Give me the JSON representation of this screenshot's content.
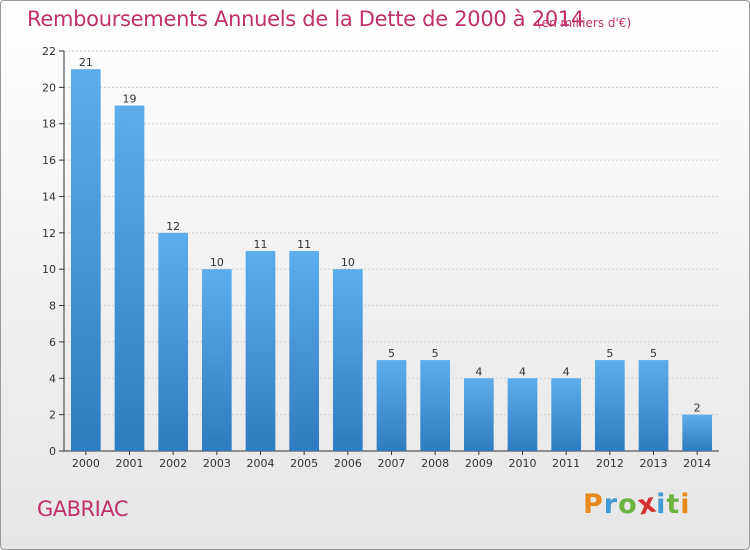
{
  "title": "Remboursements Annuels de la Dette de 2000 à 2014",
  "unit_note": "(en milliers d'€)",
  "commune": "GABRIAC",
  "logo": {
    "letters": [
      "P",
      "r",
      "o",
      "x",
      "i",
      "t",
      "i"
    ],
    "colors": [
      "#e8891c",
      "#3f9ad6",
      "#6cb33f",
      "#d6312f",
      "#3f9ad6",
      "#6cb33f",
      "#e8891c"
    ]
  },
  "colors": {
    "bar_top": "#5dadec",
    "bar_bottom": "#2f7bbf",
    "title": "#c0306a",
    "grid": "#cfcfcf"
  },
  "chart_data": {
    "type": "bar",
    "title": "Remboursements Annuels de la Dette de 2000 à 2014",
    "categories": [
      "2000",
      "2001",
      "2002",
      "2003",
      "2004",
      "2005",
      "2006",
      "2007",
      "2008",
      "2009",
      "2010",
      "2011",
      "2012",
      "2013",
      "2014"
    ],
    "values": [
      21,
      19,
      12,
      10,
      11,
      11,
      10,
      5,
      5,
      4,
      4,
      4,
      5,
      5,
      2
    ],
    "ylim": [
      0,
      22
    ],
    "yticks": [
      0,
      2,
      4,
      6,
      8,
      10,
      12,
      14,
      16,
      18,
      20,
      22
    ],
    "grid": true
  }
}
